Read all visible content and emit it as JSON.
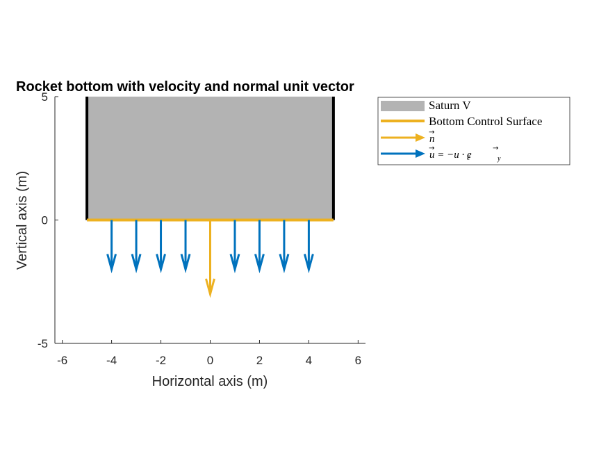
{
  "chart_data": {
    "type": "line",
    "title": "Rocket bottom with velocity and normal unit vector",
    "xlabel": "Horizontal axis (m)",
    "ylabel": "Vertical axis (m)",
    "xlim": [
      -6.3,
      6.3
    ],
    "ylim": [
      -5,
      5
    ],
    "xticks": [
      -6,
      -4,
      -2,
      0,
      2,
      4,
      6
    ],
    "yticks": [
      -5,
      0,
      5
    ],
    "grid": false,
    "legend_position": "outside-top-right",
    "colors": {
      "rocket_fill": "#b3b3b3",
      "rocket_edge": "#000000",
      "surface": "#edb120",
      "normal": "#edb120",
      "velocity": "#0072bd"
    },
    "rocket": {
      "x": [
        -5,
        5
      ],
      "y": [
        0,
        5
      ]
    },
    "control_surface": {
      "x": [
        -5,
        5
      ],
      "y": [
        0,
        0
      ]
    },
    "normal_vector": {
      "x": 0,
      "y": 0,
      "dx": 0,
      "dy": -3
    },
    "velocity_vectors": [
      {
        "x": -4,
        "y": 0,
        "dx": 0,
        "dy": -2
      },
      {
        "x": -3,
        "y": 0,
        "dx": 0,
        "dy": -2
      },
      {
        "x": -2,
        "y": 0,
        "dx": 0,
        "dy": -2
      },
      {
        "x": -1,
        "y": 0,
        "dx": 0,
        "dy": -2
      },
      {
        "x": 1,
        "y": 0,
        "dx": 0,
        "dy": -2
      },
      {
        "x": 2,
        "y": 0,
        "dx": 0,
        "dy": -2
      },
      {
        "x": 3,
        "y": 0,
        "dx": 0,
        "dy": -2
      },
      {
        "x": 4,
        "y": 0,
        "dx": 0,
        "dy": -2
      }
    ],
    "legend": [
      {
        "label": "Saturn V",
        "kind": "patch"
      },
      {
        "label": "Bottom Control Surface",
        "kind": "line"
      },
      {
        "label": "n",
        "kind": "normal"
      },
      {
        "label": "u = −u · e",
        "kind": "velocity"
      }
    ]
  }
}
